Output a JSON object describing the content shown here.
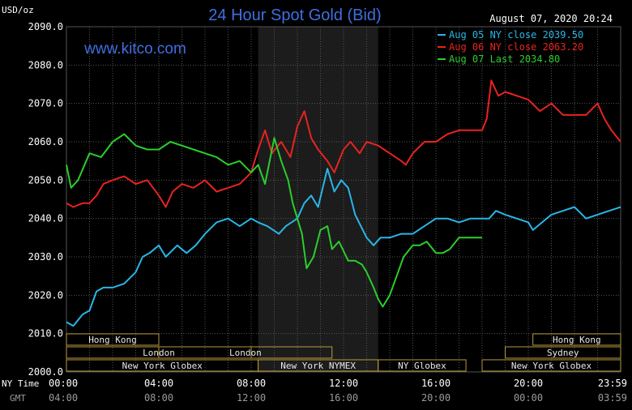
{
  "title": "24 Hour Spot Gold (Bid)",
  "website": "www.kitco.com",
  "timestamp": "August 07, 2020 20:24",
  "y_unit": "USD/oz",
  "x_row_labels": [
    "NY Time",
    "GMT"
  ],
  "colors": {
    "background": "#000000",
    "plot_background": "#000000",
    "shaded_region": "#1c1c1c",
    "grid": "#555555",
    "title": "#3f6fe0",
    "website": "#3f6fe0",
    "axis_text": "#ffffff",
    "gmt_text": "#9a9a9a",
    "session_border": "#b89a3a",
    "session_text": "#e8e8e8"
  },
  "chart_data": {
    "type": "line",
    "title": "24 Hour Spot Gold (Bid)",
    "ylabel": "USD/oz",
    "ylim": [
      2000,
      2090
    ],
    "y_ticks": [
      "2000.0",
      "2010.0",
      "2020.0",
      "2030.0",
      "2040.0",
      "2050.0",
      "2060.0",
      "2070.0",
      "2080.0",
      "2090.0"
    ],
    "xlim": [
      0,
      24
    ],
    "x_ticks_ny": [
      "00:00",
      "04:00",
      "08:00",
      "12:00",
      "16:00",
      "20:00",
      "23:59"
    ],
    "x_ticks_gmt": [
      "04:00",
      "08:00",
      "12:00",
      "16:00",
      "20:00",
      "00:00",
      "03:59"
    ],
    "grid": true,
    "legend_position": "top-right",
    "shaded_x_range": [
      8.3,
      13.5
    ],
    "series": [
      {
        "name": "Aug 05 NY close 2039.50",
        "color": "#29b6e8",
        "points": [
          [
            0,
            2013
          ],
          [
            0.3,
            2012
          ],
          [
            0.7,
            2015
          ],
          [
            1,
            2016
          ],
          [
            1.3,
            2021
          ],
          [
            1.6,
            2022
          ],
          [
            2,
            2022
          ],
          [
            2.5,
            2023
          ],
          [
            3,
            2026
          ],
          [
            3.3,
            2030
          ],
          [
            3.6,
            2031
          ],
          [
            4,
            2033
          ],
          [
            4.3,
            2030
          ],
          [
            4.8,
            2033
          ],
          [
            5.2,
            2031
          ],
          [
            5.6,
            2033
          ],
          [
            6,
            2036
          ],
          [
            6.5,
            2039
          ],
          [
            7,
            2040
          ],
          [
            7.5,
            2038
          ],
          [
            8,
            2040
          ],
          [
            8.3,
            2039
          ],
          [
            8.7,
            2038
          ],
          [
            9.2,
            2036
          ],
          [
            9.5,
            2038
          ],
          [
            10,
            2040
          ],
          [
            10.3,
            2044
          ],
          [
            10.6,
            2046
          ],
          [
            10.9,
            2043
          ],
          [
            11.1,
            2048
          ],
          [
            11.3,
            2053
          ],
          [
            11.6,
            2047
          ],
          [
            11.9,
            2050
          ],
          [
            12.2,
            2048
          ],
          [
            12.5,
            2041
          ],
          [
            13,
            2035
          ],
          [
            13.3,
            2033
          ],
          [
            13.6,
            2035
          ],
          [
            14,
            2035
          ],
          [
            14.5,
            2036
          ],
          [
            15,
            2036
          ],
          [
            15.5,
            2038
          ],
          [
            16,
            2040
          ],
          [
            16.5,
            2040
          ],
          [
            17,
            2039
          ],
          [
            17.5,
            2040
          ],
          [
            18,
            2040
          ],
          [
            18.3,
            2040
          ],
          [
            18.6,
            2042
          ],
          [
            19,
            2041
          ],
          [
            19.5,
            2040
          ],
          [
            20,
            2039
          ],
          [
            20.2,
            2037
          ],
          [
            20.6,
            2039
          ],
          [
            21,
            2041
          ],
          [
            21.5,
            2042
          ],
          [
            22,
            2043
          ],
          [
            22.5,
            2040
          ],
          [
            23,
            2041
          ],
          [
            23.5,
            2042
          ],
          [
            24,
            2043
          ]
        ]
      },
      {
        "name": "Aug 06 NY close 2063.20",
        "color": "#e8231f",
        "points": [
          [
            0,
            2044
          ],
          [
            0.3,
            2043
          ],
          [
            0.7,
            2044
          ],
          [
            1,
            2044
          ],
          [
            1.3,
            2046
          ],
          [
            1.6,
            2049
          ],
          [
            2,
            2050
          ],
          [
            2.5,
            2051
          ],
          [
            3,
            2049
          ],
          [
            3.5,
            2050
          ],
          [
            4,
            2046
          ],
          [
            4.3,
            2043
          ],
          [
            4.6,
            2047
          ],
          [
            5,
            2049
          ],
          [
            5.5,
            2048
          ],
          [
            6,
            2050
          ],
          [
            6.5,
            2047
          ],
          [
            7,
            2048
          ],
          [
            7.5,
            2049
          ],
          [
            8,
            2052
          ],
          [
            8.3,
            2058
          ],
          [
            8.6,
            2063
          ],
          [
            8.9,
            2057
          ],
          [
            9.3,
            2060
          ],
          [
            9.7,
            2056
          ],
          [
            10,
            2064
          ],
          [
            10.3,
            2068
          ],
          [
            10.6,
            2061
          ],
          [
            10.9,
            2058
          ],
          [
            11.3,
            2055
          ],
          [
            11.6,
            2052
          ],
          [
            12,
            2058
          ],
          [
            12.3,
            2060
          ],
          [
            12.7,
            2057
          ],
          [
            13,
            2060
          ],
          [
            13.5,
            2059
          ],
          [
            14,
            2057
          ],
          [
            14.5,
            2055
          ],
          [
            14.7,
            2054
          ],
          [
            15,
            2057
          ],
          [
            15.5,
            2060
          ],
          [
            16,
            2060
          ],
          [
            16.5,
            2062
          ],
          [
            17,
            2063
          ],
          [
            17.5,
            2063
          ],
          [
            18,
            2063
          ],
          [
            18.2,
            2066
          ],
          [
            18.4,
            2076
          ],
          [
            18.7,
            2072
          ],
          [
            19,
            2073
          ],
          [
            19.5,
            2072
          ],
          [
            20,
            2071
          ],
          [
            20.5,
            2068
          ],
          [
            21,
            2070
          ],
          [
            21.5,
            2067
          ],
          [
            22,
            2067
          ],
          [
            22.5,
            2067
          ],
          [
            23,
            2070
          ],
          [
            23.3,
            2066
          ],
          [
            23.6,
            2063
          ],
          [
            24,
            2060
          ]
        ]
      },
      {
        "name": "Aug 07 Last 2034.80",
        "color": "#2ccd2c",
        "points": [
          [
            0,
            2054
          ],
          [
            0.2,
            2048
          ],
          [
            0.5,
            2050
          ],
          [
            1,
            2057
          ],
          [
            1.5,
            2056
          ],
          [
            2,
            2060
          ],
          [
            2.5,
            2062
          ],
          [
            3,
            2059
          ],
          [
            3.5,
            2058
          ],
          [
            4,
            2058
          ],
          [
            4.5,
            2060
          ],
          [
            5,
            2059
          ],
          [
            5.5,
            2058
          ],
          [
            6,
            2057
          ],
          [
            6.5,
            2056
          ],
          [
            7,
            2054
          ],
          [
            7.5,
            2055
          ],
          [
            8,
            2052
          ],
          [
            8.3,
            2054
          ],
          [
            8.6,
            2049
          ],
          [
            9,
            2061
          ],
          [
            9.3,
            2055
          ],
          [
            9.6,
            2050
          ],
          [
            9.8,
            2044
          ],
          [
            10,
            2040
          ],
          [
            10.2,
            2036
          ],
          [
            10.4,
            2027
          ],
          [
            10.7,
            2030
          ],
          [
            11,
            2037
          ],
          [
            11.3,
            2038
          ],
          [
            11.5,
            2032
          ],
          [
            11.8,
            2034
          ],
          [
            12.2,
            2029
          ],
          [
            12.5,
            2029
          ],
          [
            12.8,
            2028
          ],
          [
            13,
            2026
          ],
          [
            13.3,
            2022
          ],
          [
            13.5,
            2019
          ],
          [
            13.7,
            2017
          ],
          [
            14,
            2020
          ],
          [
            14.3,
            2025
          ],
          [
            14.6,
            2030
          ],
          [
            15,
            2033
          ],
          [
            15.3,
            2033
          ],
          [
            15.6,
            2034
          ],
          [
            16,
            2031
          ],
          [
            16.3,
            2031
          ],
          [
            16.6,
            2032
          ],
          [
            17,
            2035
          ],
          [
            17.5,
            2035
          ],
          [
            18,
            2035
          ]
        ]
      }
    ],
    "legend": [
      "Aug 05 NY close 2039.50",
      "Aug 06 NY close 2063.20",
      "Aug 07 Last 2034.80"
    ]
  },
  "sessions": [
    {
      "label": "Hong Kong",
      "row": 0,
      "start": 0,
      "end": 4
    },
    {
      "label": "Hong Kong",
      "row": 0,
      "start": 20.2,
      "end": 24
    },
    {
      "label": "London",
      "row": 1,
      "start": 0,
      "end": 8
    },
    {
      "label": "London",
      "row": 1,
      "start": 4,
      "end": 11.5
    },
    {
      "label": "Sydney",
      "row": 1,
      "start": 19,
      "end": 24
    },
    {
      "label": "New York Globex",
      "row": 2,
      "start": 0,
      "end": 8.3
    },
    {
      "label": "New York NYMEX",
      "row": 2,
      "start": 8.3,
      "end": 13.5
    },
    {
      "label": "NY Globex",
      "row": 2,
      "start": 13.5,
      "end": 17.3
    },
    {
      "label": "New York Globex",
      "row": 2,
      "start": 18,
      "end": 24
    }
  ]
}
